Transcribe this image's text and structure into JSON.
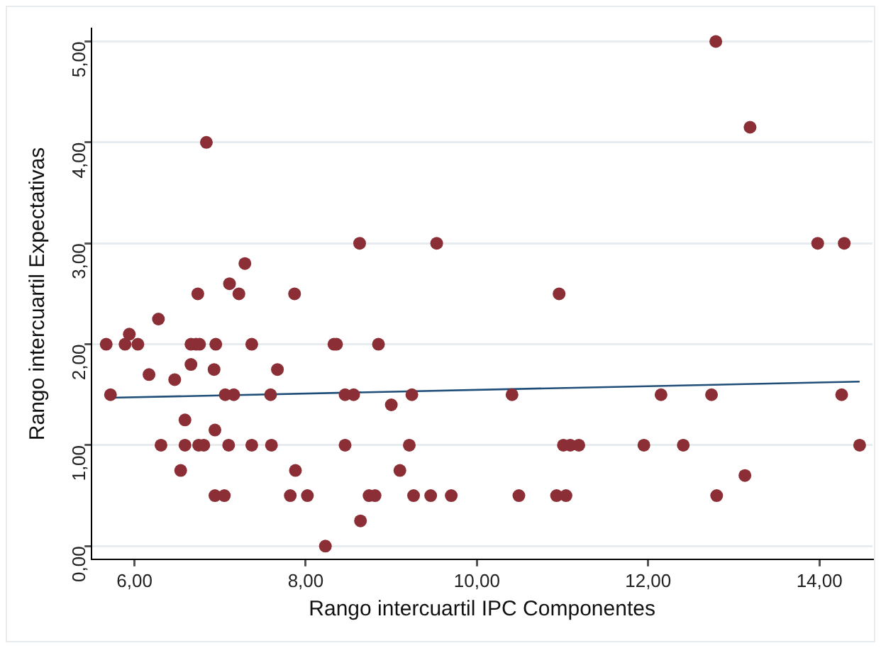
{
  "chart_data": {
    "type": "scatter",
    "xlabel": "Rango intercuartil IPC Componentes",
    "ylabel": "Rango intercuartil Expectativas",
    "xlim": [
      5.5,
      14.62
    ],
    "ylim": [
      -0.13,
      5.13
    ],
    "xticks": [
      {
        "value": 6,
        "label": "6,00"
      },
      {
        "value": 8,
        "label": "8,00"
      },
      {
        "value": 10,
        "label": "10,00"
      },
      {
        "value": 12,
        "label": "12,00"
      },
      {
        "value": 14,
        "label": "14,00"
      }
    ],
    "yticks": [
      {
        "value": 0,
        "label": "0,00"
      },
      {
        "value": 1,
        "label": "1,00"
      },
      {
        "value": 2,
        "label": "2,00"
      },
      {
        "value": 3,
        "label": "3,00"
      },
      {
        "value": 4,
        "label": "4,00"
      },
      {
        "value": 5,
        "label": "5,00"
      }
    ],
    "grid": "y",
    "legend": false,
    "marker": "circle",
    "series": [
      {
        "color": "#8b2e35",
        "x": [
          12.79,
          13.19,
          6.84,
          8.63,
          9.53,
          13.98,
          14.29,
          7.29,
          7.11,
          6.74,
          7.22,
          7.87,
          10.96,
          6.28,
          5.94,
          5.67,
          5.89,
          6.04,
          6.66,
          6.72,
          6.76,
          6.95,
          7.37,
          8.33,
          8.36,
          8.85,
          6.66,
          6.93,
          7.67,
          6.17,
          6.47,
          5.72,
          7.06,
          7.16,
          7.59,
          8.46,
          8.56,
          9.24,
          10.41,
          12.15,
          12.74,
          14.26,
          9.0,
          6.59,
          6.94,
          6.31,
          6.59,
          6.75,
          6.81,
          7.1,
          7.37,
          7.6,
          8.46,
          9.21,
          11.01,
          11.09,
          11.19,
          11.95,
          12.41,
          14.47,
          6.54,
          7.88,
          9.1,
          13.13,
          6.94,
          7.05,
          7.82,
          8.02,
          8.74,
          8.81,
          9.26,
          9.46,
          9.7,
          10.49,
          10.93,
          11.04,
          12.8,
          8.64,
          8.23
        ],
        "values": [
          5,
          4.15,
          4,
          3,
          3,
          3,
          3,
          2.8,
          2.6,
          2.5,
          2.5,
          2.5,
          2.5,
          2.25,
          2.1,
          2,
          2,
          2,
          2,
          2,
          2,
          2,
          2,
          2,
          2,
          2,
          1.8,
          1.75,
          1.75,
          1.7,
          1.65,
          1.5,
          1.5,
          1.5,
          1.5,
          1.5,
          1.5,
          1.5,
          1.5,
          1.5,
          1.5,
          1.5,
          1.4,
          1.25,
          1.15,
          1,
          1,
          1,
          1,
          1,
          1,
          1,
          1,
          1,
          1,
          1,
          1,
          1,
          1,
          1,
          0.75,
          0.75,
          0.75,
          0.7,
          0.5,
          0.5,
          0.5,
          0.5,
          0.5,
          0.5,
          0.5,
          0.5,
          0.5,
          0.5,
          0.5,
          0.5,
          0.5,
          0.25,
          0
        ]
      },
      {
        "type": "line",
        "color": "#1f4e79",
        "marker": "none",
        "x": [
          5.73,
          14.47
        ],
        "values": [
          1.47,
          1.63
        ]
      }
    ]
  }
}
